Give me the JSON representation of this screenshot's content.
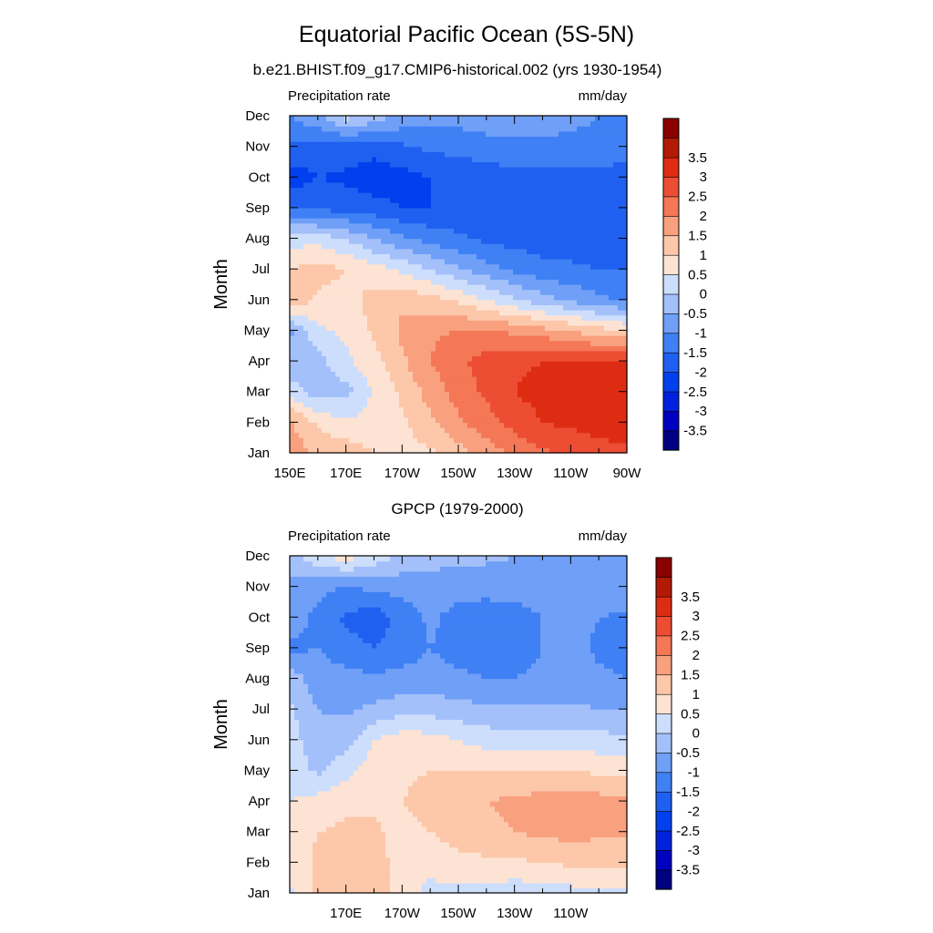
{
  "figure": {
    "title": "Equatorial Pacific Ocean (5S-5N)"
  },
  "colorbar": {
    "colors": [
      "#000080",
      "#0000bf",
      "#0022dd",
      "#0040ee",
      "#2060f0",
      "#3f80f5",
      "#6f9ff7",
      "#a3c0fa",
      "#cddefc",
      "#fde3d3",
      "#fdc7aa",
      "#f9a07f",
      "#f47756",
      "#ec4d33",
      "#de2c12",
      "#b31a05",
      "#8b0000"
    ],
    "labels": [
      "-3.5",
      "-3",
      "-2.5",
      "-2",
      "-1.5",
      "-1",
      "-0.5",
      "0",
      "0.5",
      "1",
      "1.5",
      "2",
      "2.5",
      "3",
      "3.5"
    ]
  },
  "chart_data": [
    {
      "type": "heatmap",
      "title": "b.e21.BHIST.f09_g17.CMIP6-historical.002 (yrs 1930-1954)",
      "variable_label": "Precipitation rate",
      "units": "mm/day",
      "ylabel": "Month",
      "x_tick_labels": [
        "150E",
        "170E",
        "170W",
        "150W",
        "130W",
        "110W",
        "90W"
      ],
      "y_tick_labels": [
        "Jan",
        "Feb",
        "Mar",
        "Apr",
        "May",
        "Jun",
        "Jul",
        "Aug",
        "Sep",
        "Oct",
        "Nov",
        "Dec"
      ],
      "x_lon": [
        150,
        160,
        170,
        180,
        190,
        200,
        210,
        220,
        230,
        240,
        250,
        260,
        270
      ],
      "months": [
        "Jan",
        "Feb",
        "Mar",
        "Apr",
        "May",
        "Jun",
        "Jul",
        "Aug",
        "Sep",
        "Oct",
        "Nov",
        "Dec"
      ],
      "contour_interval": 0.5,
      "values": [
        [
          1.8,
          1.4,
          1.3,
          1.0,
          0.8,
          0.9,
          1.3,
          1.7,
          2.1,
          2.4,
          2.6,
          2.8,
          2.9
        ],
        [
          1.6,
          0.9,
          0.6,
          0.7,
          0.9,
          1.4,
          1.9,
          2.3,
          2.7,
          3.0,
          3.1,
          3.2,
          3.3
        ],
        [
          0.3,
          -0.3,
          -0.2,
          0.6,
          1.1,
          1.7,
          2.2,
          2.6,
          3.0,
          3.2,
          3.4,
          3.5,
          3.5
        ],
        [
          -0.4,
          -0.2,
          0.4,
          0.8,
          1.4,
          2.0,
          2.4,
          2.7,
          2.9,
          3.0,
          3.0,
          3.0,
          3.0
        ],
        [
          -0.6,
          0.4,
          0.6,
          1.1,
          1.6,
          1.9,
          2.0,
          2.0,
          1.9,
          1.7,
          1.5,
          1.2,
          1.0
        ],
        [
          1.4,
          0.9,
          0.8,
          1.2,
          1.4,
          1.2,
          0.9,
          0.5,
          0.1,
          -0.3,
          -0.6,
          -0.9,
          -1.1
        ],
        [
          1.0,
          1.2,
          1.0,
          0.7,
          0.4,
          0.0,
          -0.4,
          -0.8,
          -1.1,
          -1.3,
          -1.4,
          -1.5,
          -1.5
        ],
        [
          0.3,
          0.3,
          0.0,
          -0.5,
          -0.9,
          -1.2,
          -1.4,
          -1.6,
          -1.7,
          -1.8,
          -1.8,
          -1.8,
          -1.9
        ],
        [
          -1.5,
          -1.6,
          -1.7,
          -1.8,
          -2.0,
          -2.0,
          -1.9,
          -1.9,
          -1.9,
          -1.9,
          -1.8,
          -1.8,
          -1.9
        ],
        [
          -2.3,
          -2.0,
          -2.1,
          -2.3,
          -2.2,
          -2.0,
          -1.9,
          -1.8,
          -1.7,
          -1.7,
          -1.7,
          -1.7,
          -1.8
        ],
        [
          -1.6,
          -1.7,
          -1.7,
          -1.8,
          -1.6,
          -1.4,
          -1.3,
          -1.2,
          -1.1,
          -1.1,
          -1.1,
          -1.1,
          -1.2
        ],
        [
          -1.0,
          -0.6,
          0.2,
          -0.2,
          -0.6,
          -0.8,
          -0.8,
          -0.7,
          -0.7,
          -0.8,
          -0.9,
          -1.0,
          -1.1
        ]
      ]
    },
    {
      "type": "heatmap",
      "title": "GPCP (1979-2000)",
      "variable_label": "Precipitation rate",
      "units": "mm/day",
      "ylabel": "Month",
      "x_tick_labels": [
        "170E",
        "170W",
        "150W",
        "130W",
        "110W"
      ],
      "y_tick_labels": [
        "Jan",
        "Feb",
        "Mar",
        "Apr",
        "May",
        "Jun",
        "Jul",
        "Aug",
        "Sep",
        "Oct",
        "Nov",
        "Dec"
      ],
      "x_lon": [
        150,
        160,
        170,
        180,
        190,
        200,
        210,
        220,
        230,
        240,
        250,
        260,
        270
      ],
      "months": [
        "Jan",
        "Feb",
        "Mar",
        "Apr",
        "May",
        "Jun",
        "Jul",
        "Aug",
        "Sep",
        "Oct",
        "Nov",
        "Dec"
      ],
      "contour_interval": 0.5,
      "values": [
        [
          0.4,
          1.1,
          1.3,
          1.5,
          0.7,
          0.4,
          0.4,
          0.3,
          0.2,
          0.2,
          0.3,
          0.4,
          0.4
        ],
        [
          0.6,
          1.1,
          1.2,
          1.4,
          0.6,
          0.6,
          0.8,
          0.9,
          0.9,
          1.0,
          1.1,
          1.1,
          1.1
        ],
        [
          0.7,
          1.0,
          1.1,
          1.1,
          0.8,
          1.0,
          1.3,
          1.4,
          1.5,
          1.6,
          1.7,
          1.6,
          1.6
        ],
        [
          0.5,
          0.7,
          0.9,
          0.9,
          1.0,
          1.2,
          1.4,
          1.5,
          1.6,
          1.7,
          1.8,
          1.7,
          1.6
        ],
        [
          0.3,
          -0.1,
          0.3,
          0.8,
          0.9,
          1.0,
          1.0,
          1.0,
          1.0,
          1.0,
          1.0,
          0.9,
          0.9
        ],
        [
          0.2,
          -0.3,
          -0.2,
          0.5,
          0.8,
          0.7,
          0.5,
          0.3,
          0.2,
          0.2,
          0.2,
          0.2,
          0.1
        ],
        [
          0.1,
          -0.5,
          -0.6,
          -0.4,
          -0.2,
          -0.2,
          -0.3,
          -0.4,
          -0.4,
          -0.4,
          -0.4,
          -0.5,
          -0.5
        ],
        [
          -0.2,
          -0.8,
          -0.8,
          -0.9,
          -0.8,
          -0.8,
          -0.9,
          -1.0,
          -1.0,
          -0.9,
          -0.8,
          -0.9,
          -1.0
        ],
        [
          -1.1,
          -1.0,
          -1.3,
          -1.5,
          -1.3,
          -1.0,
          -1.2,
          -1.3,
          -1.2,
          -1.0,
          -0.8,
          -1.1,
          -1.2
        ],
        [
          -0.8,
          -1.1,
          -1.6,
          -1.8,
          -1.3,
          -0.9,
          -1.2,
          -1.3,
          -1.2,
          -1.0,
          -0.8,
          -1.0,
          -1.1
        ],
        [
          -0.6,
          -0.9,
          -1.0,
          -0.9,
          -0.8,
          -0.7,
          -0.8,
          -0.8,
          -0.8,
          -0.8,
          -0.7,
          -0.7,
          -0.7
        ],
        [
          -0.3,
          0.4,
          0.8,
          0.3,
          -0.1,
          -0.3,
          -0.4,
          -0.4,
          -0.5,
          -0.5,
          -0.5,
          -0.5,
          -0.5
        ]
      ]
    }
  ]
}
